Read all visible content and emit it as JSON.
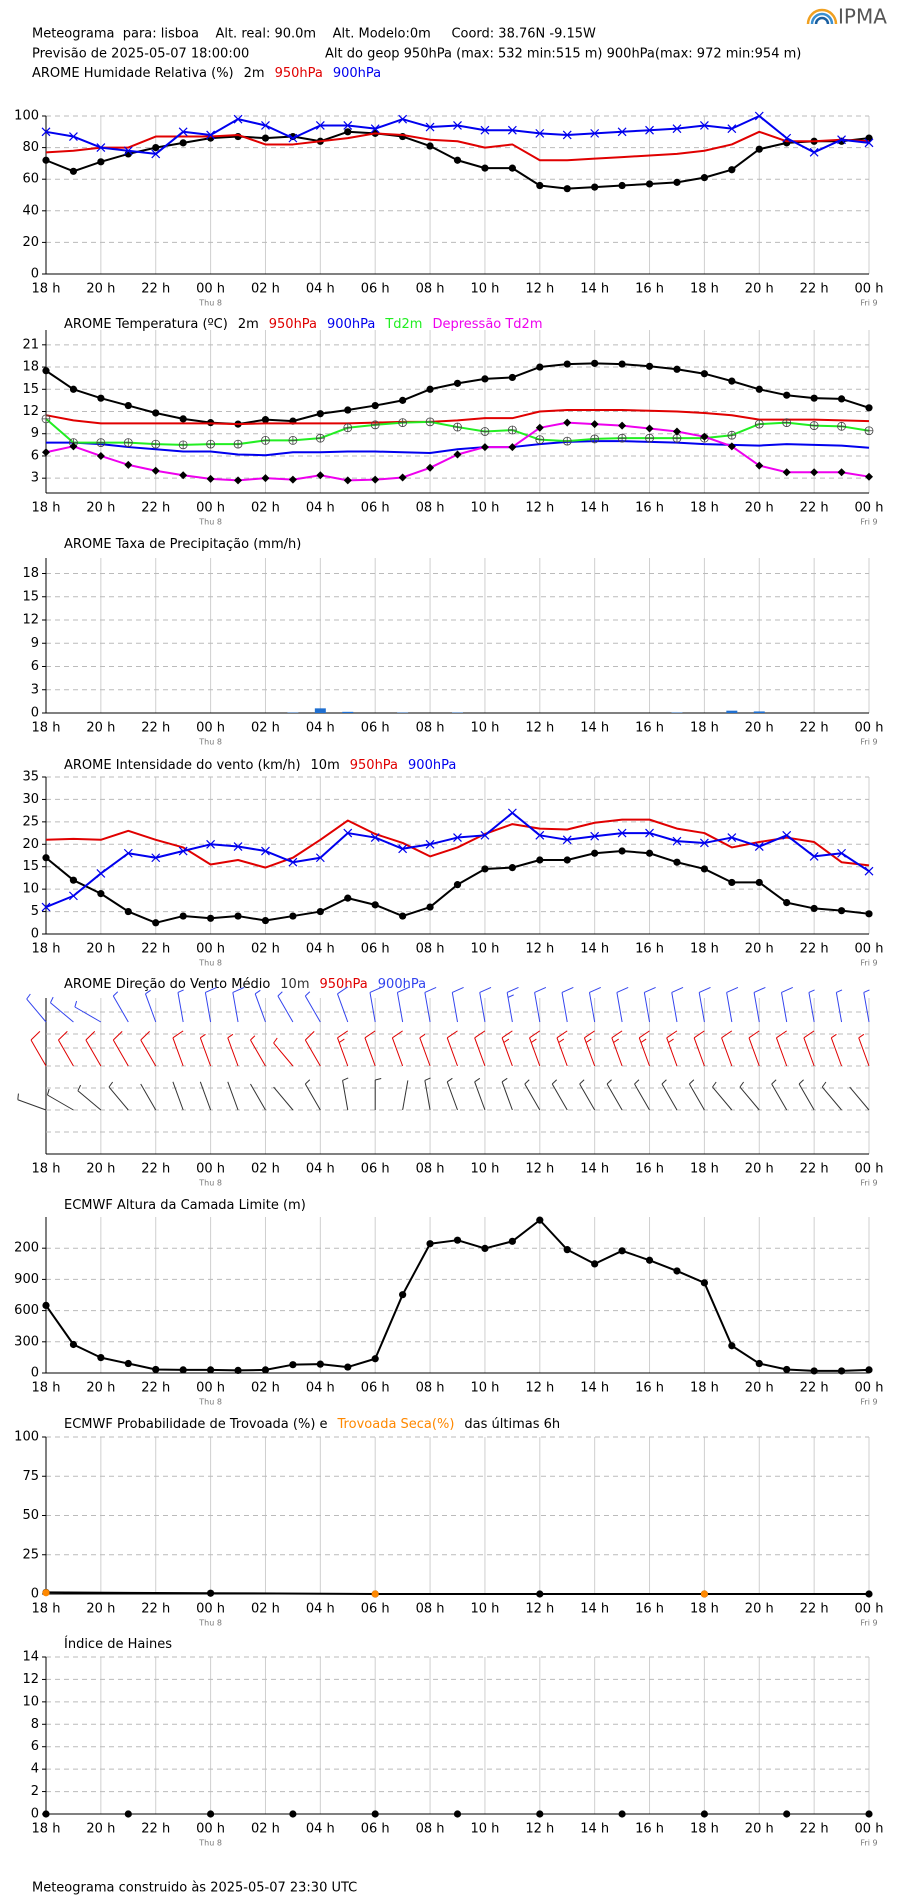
{
  "header": {
    "line1": "Meteograma  para: lisboa    Alt. real: 90.0m    Alt. Modelo:0m     Coord: 38.76N -9.15W",
    "forecast": "Previsão de 2025-05-07 18:00:00",
    "geop": "Alt do geop 950hPa (max: 532 min:515 m) 900hPa(max: 972 min:954 m)",
    "logo": "IPMA"
  },
  "footer": "Meteograma construido às 2025-05-07 23:30 UTC",
  "time_axis": {
    "categories": [
      "18 h",
      null,
      "20 h",
      null,
      "22 h",
      null,
      "00 h",
      null,
      "02 h",
      null,
      "04 h",
      null,
      "06 h",
      null,
      "08 h",
      null,
      "10 h",
      null,
      "12 h",
      null,
      "14 h",
      null,
      "16 h",
      null,
      "18 h",
      null,
      "20 h",
      null,
      "22 h",
      null,
      "00 h"
    ],
    "day_labels": [
      null,
      null,
      null,
      null,
      null,
      null,
      "Thu 8",
      null,
      null,
      null,
      null,
      null,
      null,
      null,
      null,
      null,
      null,
      null,
      null,
      null,
      null,
      null,
      null,
      null,
      null,
      null,
      null,
      null,
      null,
      null,
      "Fri 9"
    ]
  },
  "chart_data": [
    {
      "type": "line",
      "title": "AROME Humidade Relativa (%)",
      "ylim": [
        0,
        100
      ],
      "yticks": [
        0,
        20,
        40,
        60,
        80,
        100
      ],
      "grid": true,
      "series": [
        {
          "name": "2m",
          "color": "#000000",
          "marker": "dot",
          "values": [
            72,
            65,
            71,
            76,
            80,
            83,
            86,
            87,
            86,
            87,
            84,
            90,
            89,
            87,
            81,
            72,
            67,
            67,
            56,
            54,
            55,
            56,
            57,
            58,
            61,
            66,
            79,
            83,
            84,
            84,
            86
          ]
        },
        {
          "name": "950hPa",
          "color": "#e00000",
          "marker": "none",
          "values": [
            77,
            78,
            80,
            80,
            87,
            87,
            87,
            88,
            82,
            82,
            84,
            86,
            89,
            88,
            85,
            84,
            80,
            82,
            72,
            72,
            73,
            74,
            75,
            76,
            78,
            82,
            90,
            84,
            84,
            85,
            84
          ]
        },
        {
          "name": "900hPa",
          "color": "#0000ee",
          "marker": "x",
          "values": [
            90,
            87,
            80,
            78,
            76,
            90,
            88,
            98,
            94,
            86,
            94,
            94,
            92,
            98,
            93,
            94,
            91,
            91,
            89,
            88,
            89,
            90,
            91,
            92,
            94,
            92,
            100,
            86,
            77,
            85,
            83
          ]
        }
      ]
    },
    {
      "type": "line",
      "title": "AROME Temperatura (ºC)",
      "ylim": [
        1,
        23
      ],
      "yticks": [
        3,
        6,
        9,
        12,
        15,
        18,
        21
      ],
      "grid": true,
      "series": [
        {
          "name": "2m",
          "color": "#000000",
          "marker": "dot",
          "values": [
            17.5,
            15,
            13.8,
            12.8,
            11.8,
            11,
            10.5,
            10.3,
            10.9,
            10.7,
            11.7,
            12.2,
            12.8,
            13.5,
            15,
            15.8,
            16.4,
            16.6,
            18,
            18.4,
            18.5,
            18.4,
            18.1,
            17.7,
            17.1,
            16.1,
            15,
            14.2,
            13.8,
            13.7,
            12.5
          ]
        },
        {
          "name": "950hPa",
          "color": "#e00000",
          "marker": "none",
          "values": [
            11.5,
            10.8,
            10.4,
            10.4,
            10.4,
            10.4,
            10.4,
            10.3,
            10.4,
            10.4,
            10.4,
            10.4,
            10.5,
            10.6,
            10.6,
            10.8,
            11.1,
            11.1,
            12,
            12.2,
            12.2,
            12.2,
            12.1,
            12,
            11.8,
            11.5,
            10.9,
            10.9,
            10.9,
            10.8,
            10.7
          ]
        },
        {
          "name": "900hPa",
          "color": "#0000ee",
          "marker": "none",
          "values": [
            7.8,
            7.8,
            7.6,
            7.2,
            6.9,
            6.6,
            6.6,
            6.2,
            6.1,
            6.5,
            6.5,
            6.6,
            6.6,
            6.5,
            6.4,
            6.9,
            7.2,
            7.2,
            7.6,
            7.9,
            8,
            8,
            7.9,
            7.8,
            7.6,
            7.5,
            7.4,
            7.6,
            7.5,
            7.4,
            7.1
          ]
        },
        {
          "name": "Td2m",
          "color": "#22ee22",
          "marker": "circle-plus",
          "values": [
            11,
            7.8,
            7.8,
            7.8,
            7.6,
            7.5,
            7.6,
            7.6,
            8.1,
            8.1,
            8.4,
            9.8,
            10.2,
            10.5,
            10.6,
            9.9,
            9.3,
            9.5,
            8.2,
            8,
            8.3,
            8.4,
            8.4,
            8.4,
            8.4,
            8.8,
            10.3,
            10.5,
            10.1,
            10,
            9.4
          ]
        },
        {
          "name": "Depressão Td2m",
          "color": "#ee00ee",
          "marker": "diamond",
          "marker_color": "#000000",
          "values": [
            6.5,
            7.3,
            6,
            4.8,
            4,
            3.4,
            2.9,
            2.7,
            3,
            2.8,
            3.4,
            2.7,
            2.8,
            3.1,
            4.4,
            6.2,
            7.2,
            7.2,
            9.8,
            10.5,
            10.3,
            10.1,
            9.7,
            9.3,
            8.6,
            7.3,
            4.7,
            3.8,
            3.8,
            3.8,
            3.2
          ]
        }
      ]
    },
    {
      "type": "bar",
      "title": "AROME Taxa de Precipitação (mm/h)",
      "ylim": [
        0,
        20
      ],
      "yticks": [
        0,
        3,
        6,
        9,
        12,
        15,
        18
      ],
      "grid": true,
      "color": "#1f6fd0",
      "values": [
        0,
        0,
        0,
        0,
        0,
        0,
        0,
        0,
        0,
        0.05,
        0.6,
        0.15,
        0,
        0.05,
        0,
        0.05,
        0,
        0,
        0,
        0,
        0,
        0,
        0,
        0.05,
        0,
        0.3,
        0.2,
        0,
        0,
        0,
        0
      ]
    },
    {
      "type": "line",
      "title": "AROME Intensidade do vento (km/h)",
      "ylim": [
        0,
        35
      ],
      "yticks": [
        0,
        5,
        10,
        15,
        20,
        25,
        30,
        35
      ],
      "grid": true,
      "series": [
        {
          "name": "10m",
          "color": "#000000",
          "marker": "dot",
          "values": [
            17,
            12,
            9,
            5,
            2.5,
            4,
            3.5,
            4,
            3,
            4,
            5,
            8,
            6.5,
            4,
            6,
            11,
            14.5,
            14.8,
            16.5,
            16.5,
            18,
            18.5,
            18,
            16,
            14.5,
            11.5,
            11.5,
            7,
            5.7,
            5.2,
            4.5
          ]
        },
        {
          "name": "950hPa",
          "color": "#e00000",
          "marker": "none",
          "values": [
            21,
            21.2,
            21,
            23,
            21,
            19.3,
            15.5,
            16.5,
            14.8,
            17,
            21,
            25.3,
            22.3,
            20.3,
            17.3,
            19.3,
            22.3,
            24.5,
            23.5,
            23.3,
            24.8,
            25.5,
            25.5,
            23.5,
            22.5,
            19.3,
            20.5,
            21.5,
            20.5,
            16,
            15.3
          ]
        },
        {
          "name": "900hPa",
          "color": "#0000ee",
          "marker": "x",
          "values": [
            6,
            8.5,
            13.5,
            18,
            17,
            18.5,
            20,
            19.5,
            18.5,
            16,
            17,
            22.5,
            21.5,
            19,
            20,
            21.5,
            22,
            27,
            22,
            21,
            21.8,
            22.5,
            22.5,
            20.7,
            20.3,
            21.5,
            19.5,
            22,
            17.3,
            18,
            14
          ]
        }
      ]
    },
    {
      "type": "barbs",
      "title": "AROME Direção do Vento Médio",
      "series": [
        {
          "name": "10m",
          "color": "#333333",
          "directions": [
            290,
            300,
            310,
            320,
            330,
            340,
            340,
            340,
            330,
            320,
            330,
            350,
            360,
            10,
            350,
            340,
            340,
            340,
            330,
            330,
            330,
            330,
            330,
            330,
            330,
            320,
            320,
            330,
            330,
            320,
            320
          ]
        },
        {
          "name": "950hPa",
          "color": "#e00000",
          "directions": [
            330,
            330,
            330,
            330,
            330,
            340,
            340,
            340,
            330,
            320,
            330,
            340,
            340,
            340,
            340,
            340,
            340,
            340,
            340,
            340,
            340,
            340,
            340,
            340,
            340,
            340,
            340,
            340,
            340,
            340,
            340
          ]
        },
        {
          "name": "900hPa",
          "color": "#3344ee",
          "directions": [
            320,
            310,
            300,
            330,
            340,
            350,
            350,
            350,
            340,
            330,
            330,
            340,
            350,
            350,
            350,
            350,
            350,
            350,
            350,
            350,
            350,
            350,
            350,
            350,
            350,
            350,
            350,
            350,
            350,
            350,
            350
          ]
        }
      ]
    },
    {
      "type": "line",
      "title": "ECMWF Altura da Camada Limite (m)",
      "ylim": [
        0,
        1500
      ],
      "yticks": [
        0,
        300,
        600,
        900,
        {
          "value": 1200,
          "label": "200"
        }
      ],
      "grid": true,
      "series": [
        {
          "color": "#000000",
          "marker": "dot",
          "values": [
            650,
            274,
            148,
            91,
            34,
            30,
            30,
            25,
            30,
            80,
            85,
            57,
            137,
            753,
            1243,
            1277,
            1198,
            1266,
            1470,
            1186,
            1049,
            1175,
            1084,
            981,
            867,
            262,
            91,
            34,
            20,
            20,
            30
          ]
        }
      ]
    },
    {
      "type": "line",
      "title": "ECMWF Probabilidade de Trovoada (%) e",
      "title_suffix": "das últimas 6h",
      "ylim": [
        0,
        100
      ],
      "yticks": [
        0,
        25,
        50,
        75,
        100
      ],
      "grid": true,
      "series": [
        {
          "color": "#000000",
          "marker": "dot",
          "x": [
            0,
            6,
            12,
            18,
            24,
            30
          ],
          "values": [
            1,
            0.5,
            0,
            0,
            0,
            0
          ]
        },
        {
          "name": "Trovoada Seca(%)",
          "color": "#ff8800",
          "marker": "dot",
          "line": false,
          "x": [
            0,
            12,
            24
          ],
          "values": [
            0.8,
            0,
            0
          ]
        }
      ]
    },
    {
      "type": "line",
      "title": "Índice de Haines",
      "ylim": [
        0,
        14
      ],
      "yticks": [
        0,
        2,
        4,
        6,
        8,
        10,
        12,
        14
      ],
      "grid": true,
      "series": [
        {
          "color": "#000000",
          "marker": "dot",
          "line": false,
          "x": [
            0,
            3,
            6,
            9,
            12,
            15,
            18,
            21,
            24,
            27,
            30
          ],
          "values": [
            0,
            0,
            0,
            0,
            0,
            0,
            0,
            0,
            0,
            0,
            0
          ]
        }
      ]
    }
  ]
}
